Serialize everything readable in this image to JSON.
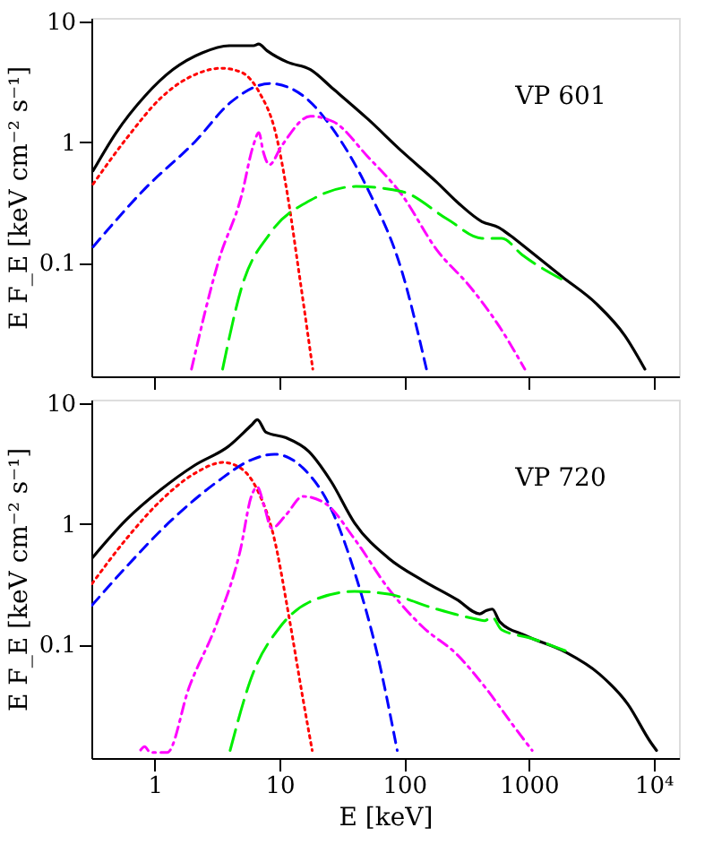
{
  "chart_data": [
    {
      "type": "line",
      "annotations": [
        "VP 601"
      ],
      "ylabel": "E F_E [keV cm⁻² s⁻¹]",
      "log": "xy",
      "grid": false,
      "tick_labels": "y",
      "marker": "none",
      "xlim": [
        0.31,
        16000
      ],
      "ylim": [
        0.0115,
        10.7
      ],
      "xticks": [
        {
          "value": 1,
          "label": null
        },
        {
          "value": 10,
          "label": null
        },
        {
          "value": 100,
          "label": null
        },
        {
          "value": 1000,
          "label": null
        },
        {
          "value": 10000,
          "label": null
        }
      ],
      "yticks": [
        0.1,
        1,
        10
      ],
      "series": [
        {
          "color": "#000000",
          "line_style": "solid",
          "x": [
            0.32,
            0.49,
            0.83,
            1.4,
            2.4,
            4.0,
            6.2,
            6.8,
            8.0,
            11.6,
            17.7,
            27,
            51,
            96,
            181,
            275,
            420,
            577,
            713,
            977,
            1845,
            3475,
            5890,
            8530
          ],
          "values": [
            0.58,
            1.2,
            2.4,
            4.0,
            5.5,
            6.3,
            6.3,
            6.5,
            5.7,
            4.6,
            4.0,
            2.76,
            1.56,
            0.84,
            0.47,
            0.31,
            0.22,
            0.196,
            0.168,
            0.13,
            0.077,
            0.046,
            0.025,
            0.0132
          ]
        },
        {
          "color": "#ff0000",
          "line_style": "dotted",
          "x": [
            0.32,
            0.6,
            1.14,
            2.14,
            3.44,
            4.98,
            6.84,
            9.4,
            11.6,
            14.3,
            18.5
          ],
          "values": [
            0.45,
            1.09,
            2.37,
            3.66,
            4.1,
            3.78,
            2.62,
            1.15,
            0.366,
            0.085,
            0.0132
          ]
        },
        {
          "color": "#0000ff",
          "line_style": "dashed",
          "x": [
            0.32,
            0.83,
            2.14,
            4.04,
            8.45,
            15.9,
            27,
            51,
            96,
            151
          ],
          "values": [
            0.136,
            0.41,
            1.03,
            2.13,
            3.06,
            2.37,
            1.27,
            0.41,
            0.085,
            0.0132
          ]
        },
        {
          "color": "#ff00ff",
          "line_style": "dashdot",
          "x": [
            1.97,
            3.26,
            4.98,
            6.15,
            6.84,
            7.4,
            8.3,
            10.4,
            17.7,
            27,
            51,
            96,
            181,
            340,
            577,
            929
          ],
          "values": [
            0.0132,
            0.105,
            0.366,
            0.93,
            1.2,
            0.84,
            0.65,
            0.93,
            1.64,
            1.48,
            0.76,
            0.366,
            0.13,
            0.063,
            0.03,
            0.0132
          ]
        },
        {
          "color": "#00ee00",
          "line_style": "longdash",
          "x": [
            3.5,
            4.98,
            8.45,
            17.7,
            41,
            96,
            223,
            420,
            608,
            881,
            1845
          ],
          "values": [
            0.0132,
            0.063,
            0.177,
            0.33,
            0.43,
            0.39,
            0.23,
            0.16,
            0.16,
            0.117,
            0.073
          ]
        }
      ]
    },
    {
      "type": "line",
      "annotations": [
        "VP 720"
      ],
      "xlabel": "E [keV]",
      "ylabel": "E F_E [keV cm⁻² s⁻¹]",
      "log": "xy",
      "grid": false,
      "marker": "none",
      "xlim": [
        0.31,
        16000
      ],
      "ylim": [
        0.0115,
        10.7
      ],
      "xticks": [
        1,
        10,
        100,
        1000,
        {
          "value": 10000,
          "label": "10⁴"
        }
      ],
      "yticks": [
        0.1,
        1,
        10
      ],
      "series": [
        {
          "color": "#000000",
          "line_style": "solid",
          "x": [
            0.314,
            0.59,
            1.11,
            2.09,
            3.93,
            5.98,
            6.65,
            7.8,
            11.3,
            17.2,
            26,
            40,
            75,
            141,
            265,
            404,
            449,
            509,
            584,
            938,
            1960,
            3690,
            6240,
            9500,
            10570
          ],
          "values": [
            0.52,
            1.08,
            1.91,
            3.06,
            4.42,
            6.6,
            7.3,
            5.74,
            5.17,
            3.98,
            2.24,
            1.02,
            0.52,
            0.34,
            0.236,
            0.18,
            0.19,
            0.197,
            0.155,
            0.119,
            0.087,
            0.057,
            0.032,
            0.0155,
            0.0133
          ]
        },
        {
          "color": "#ff0000",
          "line_style": "dotted",
          "x": [
            0.314,
            0.59,
            1.11,
            2.09,
            3.54,
            4.85,
            6.65,
            9.1,
            11.9,
            15.4,
            18.3
          ],
          "values": [
            0.32,
            0.75,
            1.55,
            2.62,
            3.23,
            2.91,
            1.91,
            0.75,
            0.172,
            0.036,
            0.0133
          ]
        },
        {
          "color": "#0000ff",
          "line_style": "dashed",
          "x": [
            0.314,
            0.59,
            1.37,
            3.18,
            5.98,
            9.1,
            15.4,
            26,
            40,
            61,
            88
          ],
          "values": [
            0.212,
            0.44,
            1.08,
            2.24,
            3.4,
            3.78,
            2.91,
            1.33,
            0.4,
            0.083,
            0.0133
          ]
        },
        {
          "color": "#ff00ff",
          "line_style": "dashdot",
          "x": [
            0.77,
            0.83,
            0.92,
            1.26,
            1.88,
            3.18,
            4.85,
            5.98,
            6.65,
            7.55,
            8.65,
            11.3,
            15.4,
            23.5,
            40,
            75,
            141,
            265,
            449,
            760,
            1064
          ],
          "values": [
            0.0134,
            0.0143,
            0.0128,
            0.0128,
            0.044,
            0.155,
            0.605,
            1.72,
            2.02,
            1.4,
            0.92,
            1.19,
            1.69,
            1.47,
            0.75,
            0.29,
            0.14,
            0.083,
            0.044,
            0.021,
            0.0133
          ]
        },
        {
          "color": "#00ee00",
          "line_style": "longdash",
          "x": [
            4.02,
            5.98,
            10.1,
            17.2,
            40,
            75,
            174,
            364,
            440,
            509,
            603,
            1042,
            1960
          ],
          "values": [
            0.0133,
            0.054,
            0.14,
            0.224,
            0.276,
            0.262,
            0.2,
            0.164,
            0.158,
            0.169,
            0.133,
            0.113,
            0.089
          ]
        }
      ]
    }
  ]
}
